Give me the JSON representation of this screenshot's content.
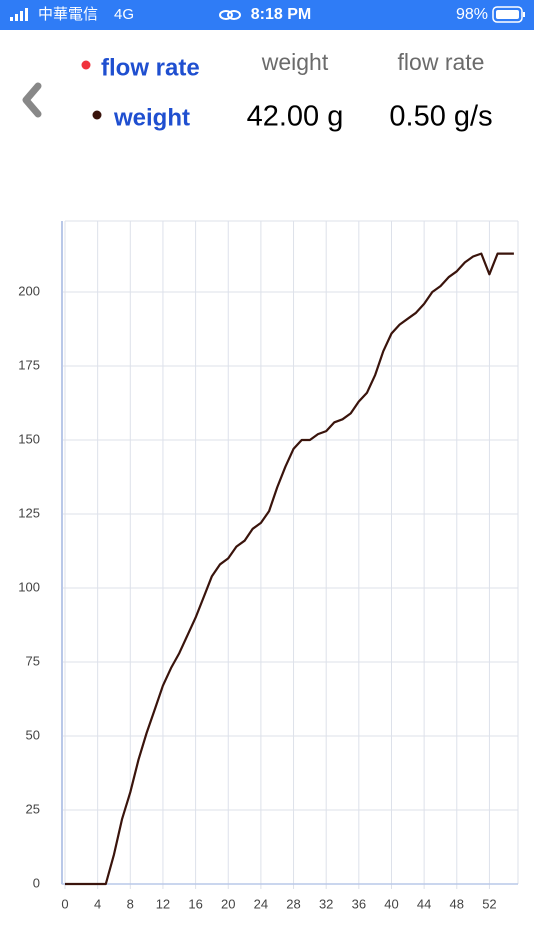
{
  "status_bar": {
    "carrier": "中華電信",
    "network": "4G",
    "time": "8:18 PM",
    "battery": "98%"
  },
  "header": {
    "legend": [
      {
        "name": "flow rate",
        "color": "#f0323c"
      },
      {
        "name": "weight",
        "color": "#3a140c"
      }
    ],
    "columns": [
      {
        "label": "weight",
        "value": "42.00 g"
      },
      {
        "label": "flow rate",
        "value": "0.50 g/s"
      }
    ]
  },
  "chart_data": {
    "type": "line",
    "x": [
      0,
      1,
      2,
      3,
      4,
      5,
      6,
      7,
      8,
      9,
      10,
      11,
      12,
      13,
      14,
      15,
      16,
      17,
      18,
      19,
      20,
      21,
      22,
      23,
      24,
      25,
      26,
      27,
      28,
      29,
      30,
      31,
      32,
      33,
      34,
      35,
      36,
      37,
      38,
      39,
      40,
      41,
      42,
      43,
      44,
      45,
      46,
      47,
      48,
      49,
      50,
      51,
      52,
      53,
      54,
      55
    ],
    "series": [
      {
        "name": "weight",
        "color": "#3a140c",
        "values": [
          0,
          0,
          0,
          0,
          0,
          0,
          10,
          22,
          31,
          42,
          51,
          59,
          67,
          73,
          78,
          84,
          90,
          97,
          104,
          108,
          110,
          114,
          116,
          120,
          122,
          126,
          134,
          141,
          147,
          150,
          150,
          152,
          153,
          156,
          157,
          159,
          163,
          166,
          172,
          180,
          186,
          189,
          191,
          193,
          196,
          200,
          202,
          205,
          207,
          210,
          212,
          213,
          206,
          213,
          213,
          213
        ]
      }
    ],
    "xlim": [
      0,
      55.5
    ],
    "xticks": [
      0,
      4,
      8,
      12,
      16,
      20,
      24,
      28,
      32,
      36,
      40,
      44,
      48,
      52
    ],
    "ylim": [
      0,
      224
    ],
    "yticks": [
      0,
      25,
      50,
      75,
      100,
      125,
      150,
      175,
      200
    ],
    "grid": true
  }
}
